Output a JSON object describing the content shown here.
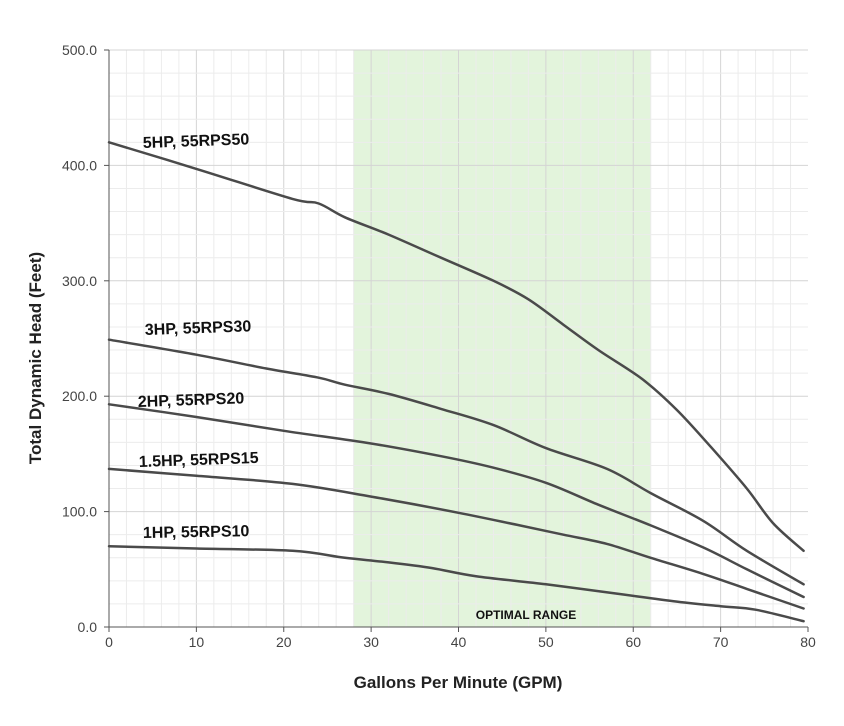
{
  "chart_data": {
    "type": "line",
    "xlabel": "Gallons Per Minute (GPM)",
    "ylabel": "Total Dynamic Head (Feet)",
    "xlim": [
      0,
      80
    ],
    "ylim": [
      0,
      500
    ],
    "x_ticks": [
      0,
      10,
      20,
      30,
      40,
      50,
      60,
      70,
      80
    ],
    "x_tick_labels": [
      "0",
      "10",
      "20",
      "30",
      "40",
      "50",
      "60",
      "70",
      "80"
    ],
    "y_ticks": [
      0,
      100,
      200,
      300,
      400,
      500
    ],
    "y_tick_labels": [
      "0.0",
      "100.0",
      "200.0",
      "300.0",
      "400.0",
      "500.0"
    ],
    "grid": true,
    "legend": "none (inline series labels)",
    "line_color": "#4a4a4a",
    "band_color": "#e3f4dc",
    "highlight_band": {
      "x_start": 28,
      "x_end": 62,
      "label": "OPTIMAL RANGE"
    },
    "series": [
      {
        "name": "5HP, 55RPS50",
        "x": [
          0,
          10,
          21,
          24,
          27,
          32,
          38,
          44,
          48,
          52,
          56,
          61,
          65,
          69,
          73,
          76,
          79.5
        ],
        "y": [
          420,
          397,
          371,
          367,
          355,
          340,
          320,
          300,
          284,
          262,
          240,
          215,
          188,
          155,
          120,
          90,
          66
        ]
      },
      {
        "name": "3HP, 55RPS30",
        "x": [
          0,
          10,
          18,
          24,
          27,
          32,
          38,
          44,
          50,
          57,
          62,
          68,
          73,
          79.5
        ],
        "y": [
          249,
          236,
          224,
          216,
          210,
          202,
          189,
          175,
          155,
          137,
          116,
          92,
          66,
          37
        ]
      },
      {
        "name": "2HP, 55RPS20",
        "x": [
          0,
          10,
          20,
          30,
          38,
          44,
          50,
          56,
          62,
          68,
          73,
          79.5
        ],
        "y": [
          193,
          182,
          170,
          159,
          148,
          138,
          125,
          106,
          88,
          69,
          50,
          26
        ]
      },
      {
        "name": "1.5HP, 55RPS15",
        "x": [
          0,
          10,
          21,
          30,
          40,
          47,
          52,
          57,
          62,
          68,
          73,
          79.5
        ],
        "y": [
          137,
          131,
          124,
          113,
          99,
          88,
          80,
          72,
          60,
          46,
          33,
          16
        ]
      },
      {
        "name": "1HP, 55RPS10",
        "x": [
          0,
          10,
          21,
          27,
          32,
          37,
          42,
          50,
          58,
          65,
          70,
          74,
          79.5
        ],
        "y": [
          70,
          68,
          66,
          60,
          56,
          51,
          44,
          37,
          29,
          22,
          18,
          15,
          5
        ]
      }
    ]
  }
}
